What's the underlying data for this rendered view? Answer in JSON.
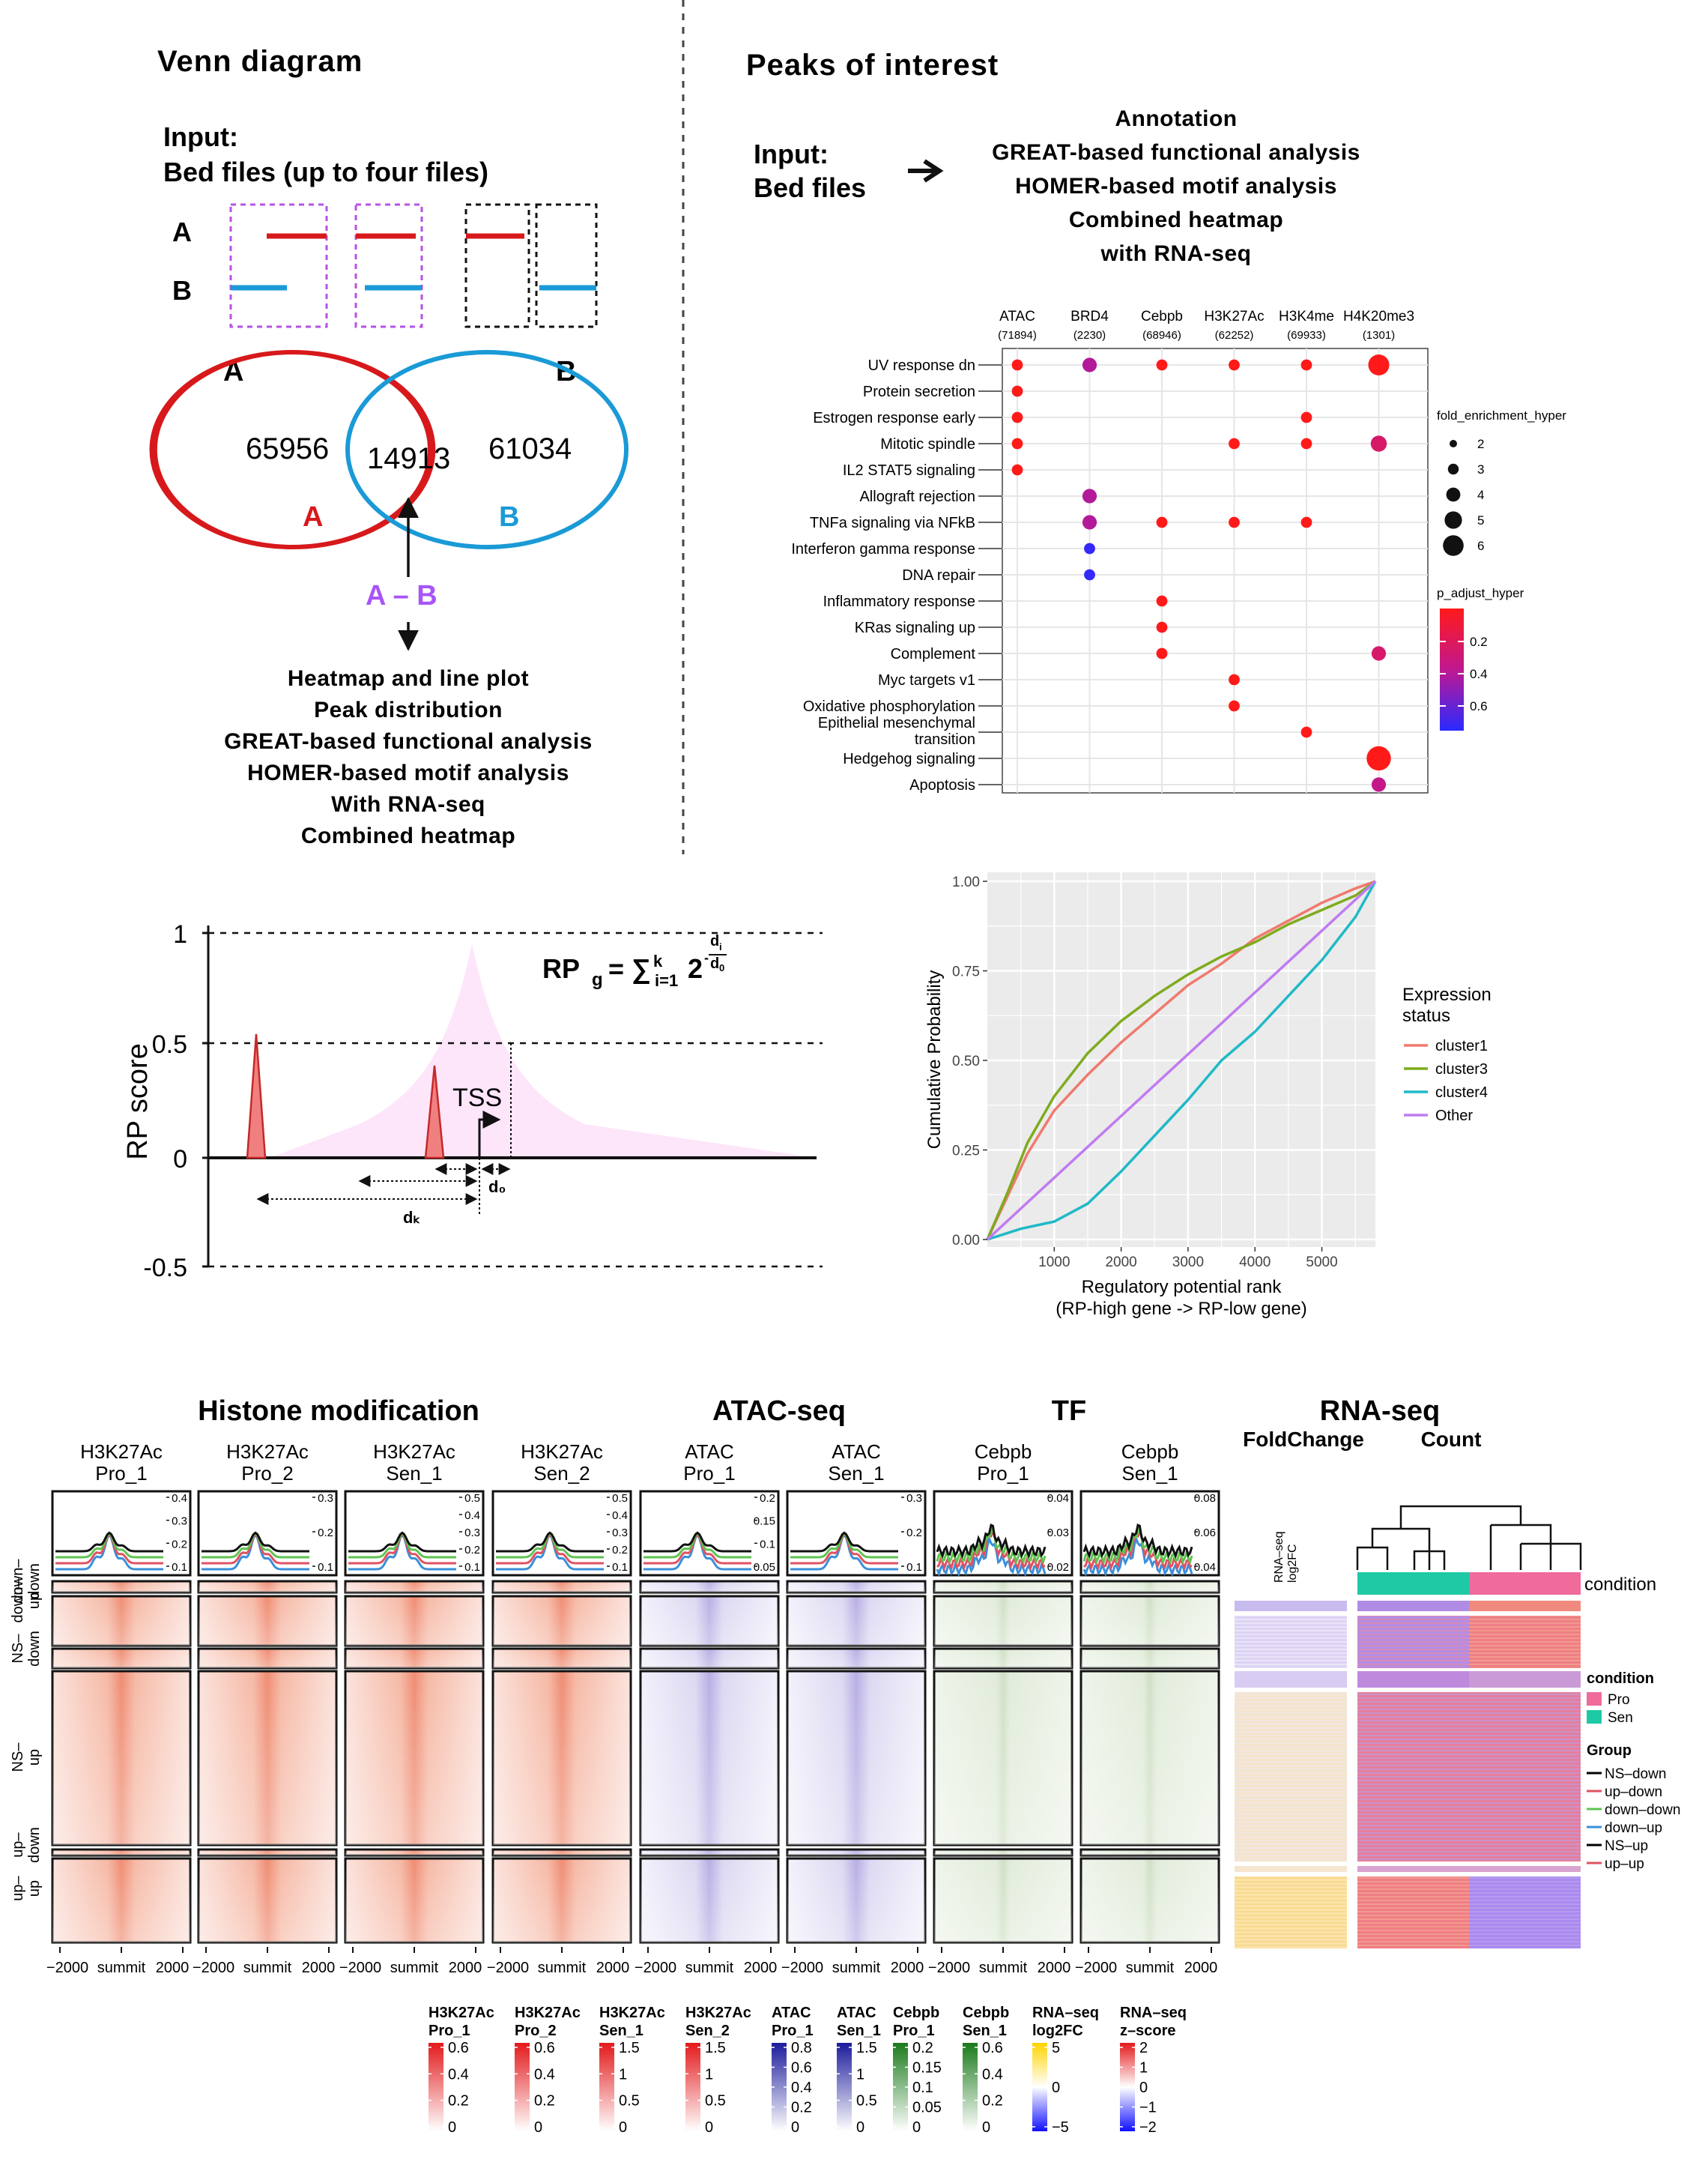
{
  "venn": {
    "title": "Venn diagram",
    "input_title": "Input:",
    "input_sub": "Bed files (up to four files)",
    "row_a": "A",
    "row_b": "B",
    "set_a_label": "A",
    "set_b_label": "B",
    "count_a": "65956",
    "count_ab": "14913",
    "count_b": "61034",
    "inner_a": "A",
    "inner_b": "B",
    "diff_label": "A – B",
    "features": [
      "Heatmap and line plot",
      "Peak distribution",
      "GREAT-based functional analysis",
      "HOMER-based motif analysis",
      "With RNA-seq",
      "Combined heatmap"
    ],
    "colors": {
      "a": "#d7191c",
      "b": "#1a9ad6",
      "diff": "#a855f7"
    }
  },
  "peaks": {
    "title": "Peaks of interest",
    "input_title": "Input:",
    "input_sub": "Bed files",
    "features": [
      "Annotation",
      "GREAT-based functional analysis",
      "HOMER-based motif analysis",
      "Combined heatmap",
      "with RNA-seq"
    ],
    "columns": [
      {
        "name": "ATAC",
        "count": "(71894)"
      },
      {
        "name": "BRD4",
        "count": "(2230)"
      },
      {
        "name": "Cebpb",
        "count": "(68946)"
      },
      {
        "name": "H3K27Ac",
        "count": "(62252)"
      },
      {
        "name": "H3K4me",
        "count": "(69933)"
      },
      {
        "name": "H4K20me3",
        "count": "(1301)"
      }
    ],
    "rows": [
      "UV response dn",
      "Protein secretion",
      "Estrogen response early",
      "Mitotic spindle",
      "IL2 STAT5 signaling",
      "Allograft rejection",
      "TNFa signaling via NFkB",
      "Interferon gamma response",
      "DNA repair",
      "Inflammatory response",
      "KRas signaling up",
      "Complement",
      "Myc targets v1",
      "Oxidative phosphorylation",
      "Epithelial mesenchymal transition",
      "Hedgehog signaling",
      "Apoptosis"
    ],
    "dots": [
      {
        "row": 0,
        "col": 0,
        "size": 2,
        "p": 0.02
      },
      {
        "row": 0,
        "col": 1,
        "size": 3,
        "p": 0.4
      },
      {
        "row": 0,
        "col": 2,
        "size": 2,
        "p": 0.02
      },
      {
        "row": 0,
        "col": 3,
        "size": 2,
        "p": 0.02
      },
      {
        "row": 0,
        "col": 4,
        "size": 2,
        "p": 0.02
      },
      {
        "row": 0,
        "col": 5,
        "size": 5,
        "p": 0.02
      },
      {
        "row": 1,
        "col": 0,
        "size": 2,
        "p": 0.02
      },
      {
        "row": 2,
        "col": 0,
        "size": 2,
        "p": 0.02
      },
      {
        "row": 2,
        "col": 4,
        "size": 2,
        "p": 0.02
      },
      {
        "row": 3,
        "col": 0,
        "size": 2,
        "p": 0.02
      },
      {
        "row": 3,
        "col": 3,
        "size": 2,
        "p": 0.02
      },
      {
        "row": 3,
        "col": 4,
        "size": 2,
        "p": 0.02
      },
      {
        "row": 3,
        "col": 5,
        "size": 3.5,
        "p": 0.25
      },
      {
        "row": 4,
        "col": 0,
        "size": 2,
        "p": 0.02
      },
      {
        "row": 5,
        "col": 1,
        "size": 3,
        "p": 0.4
      },
      {
        "row": 6,
        "col": 1,
        "size": 3,
        "p": 0.4
      },
      {
        "row": 6,
        "col": 2,
        "size": 2,
        "p": 0.02
      },
      {
        "row": 6,
        "col": 3,
        "size": 2,
        "p": 0.02
      },
      {
        "row": 6,
        "col": 4,
        "size": 2,
        "p": 0.02
      },
      {
        "row": 7,
        "col": 1,
        "size": 2,
        "p": 0.7
      },
      {
        "row": 8,
        "col": 1,
        "size": 2,
        "p": 0.7
      },
      {
        "row": 9,
        "col": 2,
        "size": 2,
        "p": 0.02
      },
      {
        "row": 10,
        "col": 2,
        "size": 2,
        "p": 0.02
      },
      {
        "row": 11,
        "col": 2,
        "size": 2,
        "p": 0.02
      },
      {
        "row": 11,
        "col": 5,
        "size": 3,
        "p": 0.25
      },
      {
        "row": 12,
        "col": 3,
        "size": 2,
        "p": 0.02
      },
      {
        "row": 13,
        "col": 3,
        "size": 2,
        "p": 0.02
      },
      {
        "row": 14,
        "col": 4,
        "size": 2,
        "p": 0.02
      },
      {
        "row": 15,
        "col": 5,
        "size": 6,
        "p": 0.02
      },
      {
        "row": 16,
        "col": 5,
        "size": 3,
        "p": 0.35
      }
    ],
    "size_legend_title": "fold_enrichment_hyper",
    "size_legend": [
      "2",
      "3",
      "4",
      "5",
      "6"
    ],
    "color_legend_title": "p_adjust_hyper",
    "color_legend": [
      "0.2",
      "0.4",
      "0.6"
    ]
  },
  "rp": {
    "ylabel": "RP score",
    "y_ticks": [
      "1",
      "0.5",
      "0",
      "-0.5"
    ],
    "formula_lhs": "RP",
    "formula_sub": "g",
    "formula_eq": "= ∑",
    "formula_lim_top": "k",
    "formula_lim_bot": "i=1",
    "formula_base": "2",
    "formula_exp_num": "d",
    "formula_exp_num_sub": "i",
    "formula_exp_den": "d",
    "formula_exp_den_sub": "0",
    "tss": "TSS",
    "d0": "d₀",
    "dk": "dₖ"
  },
  "cdf": {
    "ylabel": "Cumulative Probability",
    "xlabel": "Regulatory potential rank",
    "xlabel2": "(RP-high gene -> RP-low gene)",
    "x_ticks": [
      "1000",
      "2000",
      "3000",
      "4000",
      "5000"
    ],
    "y_ticks": [
      "0.00",
      "0.25",
      "0.50",
      "0.75",
      "1.00"
    ],
    "legend_title": "Expression",
    "legend_title2": "status",
    "series": [
      {
        "name": "cluster1",
        "color": "#ef7a6e",
        "x": [
          0,
          300,
          600,
          1000,
          1500,
          2000,
          2500,
          3000,
          3500,
          4000,
          4500,
          5000,
          5500,
          5800
        ],
        "y": [
          0,
          0.12,
          0.24,
          0.36,
          0.46,
          0.55,
          0.63,
          0.71,
          0.77,
          0.84,
          0.89,
          0.94,
          0.98,
          1.0
        ]
      },
      {
        "name": "cluster3",
        "color": "#7fab1f",
        "x": [
          0,
          300,
          600,
          1000,
          1500,
          2000,
          2500,
          3000,
          3500,
          4000,
          4500,
          5000,
          5500,
          5800
        ],
        "y": [
          0,
          0.13,
          0.27,
          0.4,
          0.52,
          0.61,
          0.68,
          0.74,
          0.79,
          0.83,
          0.88,
          0.92,
          0.96,
          1.0
        ]
      },
      {
        "name": "cluster4",
        "color": "#1fb9c7",
        "x": [
          0,
          500,
          1000,
          1500,
          2000,
          2500,
          3000,
          3500,
          4000,
          4500,
          5000,
          5500,
          5800
        ],
        "y": [
          0,
          0.03,
          0.05,
          0.1,
          0.19,
          0.29,
          0.39,
          0.5,
          0.58,
          0.68,
          0.78,
          0.9,
          1.0
        ]
      },
      {
        "name": "Other",
        "color": "#c07bf2",
        "x": [
          0,
          5800
        ],
        "y": [
          0,
          1.0
        ]
      }
    ],
    "xlim": [
      0,
      5800
    ],
    "ylim": [
      0,
      1.0
    ]
  },
  "heat": {
    "section_titles": [
      "Histone modification",
      "ATAC-seq",
      "TF",
      "RNA-seq"
    ],
    "rna_sub_fold": "FoldChange",
    "rna_sub_count": "Count",
    "tracks": [
      {
        "l1": "H3K27Ac",
        "l2": "Pro_1",
        "kind": "red",
        "ticks": [
          "0.4",
          "0.3",
          "0.2",
          "0.1"
        ]
      },
      {
        "l1": "H3K27Ac",
        "l2": "Pro_2",
        "kind": "red",
        "ticks": [
          "0.3",
          "0.2",
          "0.1"
        ]
      },
      {
        "l1": "H3K27Ac",
        "l2": "Sen_1",
        "kind": "red",
        "ticks": [
          "0.5",
          "0.4",
          "0.3",
          "0.2",
          "0.1"
        ]
      },
      {
        "l1": "H3K27Ac",
        "l2": "Sen_2",
        "kind": "red",
        "ticks": [
          "0.5",
          "0.4",
          "0.3",
          "0.2",
          "0.1"
        ]
      },
      {
        "l1": "ATAC",
        "l2": "Pro_1",
        "kind": "blue",
        "ticks": [
          "0.2",
          "0.15",
          "0.1",
          "0.05"
        ]
      },
      {
        "l1": "ATAC",
        "l2": "Sen_1",
        "kind": "blue",
        "ticks": [
          "0.3",
          "0.2",
          "0.1"
        ]
      },
      {
        "l1": "Cebpb",
        "l2": "Pro_1",
        "kind": "green",
        "ticks": [
          "0.04",
          "0.03",
          "0.02"
        ]
      },
      {
        "l1": "Cebpb",
        "l2": "Sen_1",
        "kind": "green",
        "ticks": [
          "0.08",
          "0.06",
          "0.04"
        ]
      }
    ],
    "group_labels": [
      "down–down",
      "down–up",
      "NS–down",
      "NS–up",
      "up–down",
      "up–up"
    ],
    "x_ticks": [
      "−2000",
      "summit",
      "2000"
    ],
    "rna_col_label": "RNA–seq",
    "rna_col_label2": "log2FC",
    "condition": "condition",
    "legend_condition_title": "condition",
    "legend_condition": [
      {
        "name": "Pro",
        "color": "#f06a9b"
      },
      {
        "name": "Sen",
        "color": "#1ec9a5"
      }
    ],
    "legend_group_title": "Group",
    "legend_group": [
      {
        "name": "NS–down",
        "color": "#000000"
      },
      {
        "name": "up–down",
        "color": "#e05262"
      },
      {
        "name": "down–down",
        "color": "#5ec450"
      },
      {
        "name": "down–up",
        "color": "#3b8fd9"
      },
      {
        "name": "NS–up",
        "color": "#000000"
      },
      {
        "name": "up–up",
        "color": "#e05262"
      }
    ]
  },
  "scales": [
    {
      "l1": "H3K27Ac",
      "l2": "Pro_1",
      "color": "#e31a1c",
      "ticks": [
        "0.6",
        "0.4",
        "0.2",
        "0"
      ]
    },
    {
      "l1": "H3K27Ac",
      "l2": "Pro_2",
      "color": "#e31a1c",
      "ticks": [
        "0.6",
        "0.4",
        "0.2",
        "0"
      ]
    },
    {
      "l1": "H3K27Ac",
      "l2": "Sen_1",
      "color": "#e31a1c",
      "ticks": [
        "1.5",
        "1",
        "0.5",
        "0"
      ]
    },
    {
      "l1": "H3K27Ac",
      "l2": "Sen_2",
      "color": "#e31a1c",
      "ticks": [
        "1.5",
        "1",
        "0.5",
        "0"
      ]
    },
    {
      "l1": "ATAC",
      "l2": "Pro_1",
      "color": "#1c1c9c",
      "ticks": [
        "0.8",
        "0.6",
        "0.4",
        "0.2",
        "0"
      ]
    },
    {
      "l1": "ATAC",
      "l2": "Sen_1",
      "color": "#1c1c9c",
      "ticks": [
        "1.5",
        "1",
        "0.5",
        "0"
      ]
    },
    {
      "l1": "Cebpb",
      "l2": "Pro_1",
      "color": "#1b7a1b",
      "ticks": [
        "0.2",
        "0.15",
        "0.1",
        "0.05",
        "0"
      ]
    },
    {
      "l1": "Cebpb",
      "l2": "Sen_1",
      "color": "#1b7a1b",
      "ticks": [
        "0.6",
        "0.4",
        "0.2",
        "0"
      ]
    },
    {
      "l1": "RNA–seq",
      "l2": "log2FC",
      "color": "rna",
      "ticks": [
        "5",
        "0",
        "−5"
      ]
    },
    {
      "l1": "RNA–seq",
      "l2": "z–score",
      "color": "z",
      "ticks": [
        "2",
        "1",
        "0",
        "−1",
        "−2"
      ]
    }
  ]
}
